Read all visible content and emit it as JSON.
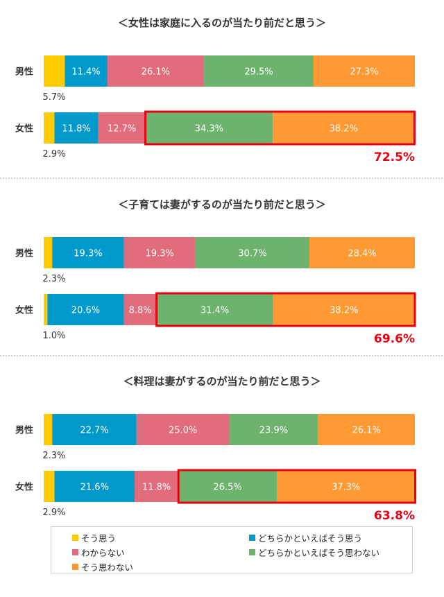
{
  "chart_data": [
    {
      "type": "bar",
      "orientation": "horizontal-stacked-100",
      "title": "＜女性は家庭に入るのが当たり前だと思う＞",
      "categories": [
        "男性",
        "女性"
      ],
      "series": [
        {
          "name": "そう思う",
          "values": [
            5.7,
            2.9
          ]
        },
        {
          "name": "どちらかといえばそう思う",
          "values": [
            11.4,
            11.8
          ]
        },
        {
          "name": "わからない",
          "values": [
            26.1,
            12.7
          ]
        },
        {
          "name": "どちらかといえばそう思わない",
          "values": [
            29.5,
            34.3
          ]
        },
        {
          "name": "そう思わない",
          "values": [
            27.3,
            38.2
          ]
        }
      ],
      "highlight": {
        "row": 1,
        "series": [
          3,
          4
        ],
        "total_label": "72.5%"
      }
    },
    {
      "type": "bar",
      "orientation": "horizontal-stacked-100",
      "title": "＜子育ては妻がするのが当たり前だと思う＞",
      "categories": [
        "男性",
        "女性"
      ],
      "series": [
        {
          "name": "そう思う",
          "values": [
            2.3,
            1.0
          ]
        },
        {
          "name": "どちらかといえばそう思う",
          "values": [
            19.3,
            20.6
          ]
        },
        {
          "name": "わからない",
          "values": [
            19.3,
            8.8
          ]
        },
        {
          "name": "どちらかといえばそう思わない",
          "values": [
            30.7,
            31.4
          ]
        },
        {
          "name": "そう思わない",
          "values": [
            28.4,
            38.2
          ]
        }
      ],
      "highlight": {
        "row": 1,
        "series": [
          3,
          4
        ],
        "total_label": "69.6%"
      }
    },
    {
      "type": "bar",
      "orientation": "horizontal-stacked-100",
      "title": "＜料理は妻がするのが当たり前だと思う＞",
      "categories": [
        "男性",
        "女性"
      ],
      "series": [
        {
          "name": "そう思う",
          "values": [
            2.3,
            2.9
          ]
        },
        {
          "name": "どちらかといえばそう思う",
          "values": [
            22.7,
            21.6
          ]
        },
        {
          "name": "わからない",
          "values": [
            25.0,
            11.8
          ]
        },
        {
          "name": "どちらかといえばそう思わない",
          "values": [
            23.9,
            26.5
          ]
        },
        {
          "name": "そう思わない",
          "values": [
            26.1,
            37.3
          ]
        }
      ],
      "highlight": {
        "row": 1,
        "series": [
          3,
          4
        ],
        "total_label": "63.8%"
      }
    }
  ],
  "colors": [
    "#ffcc00",
    "#0099cc",
    "#e06c7c",
    "#6db36d",
    "#ff9933"
  ],
  "highlight_color": "#e60012",
  "legend": [
    {
      "label": "そう思う",
      "color": "#ffcc00"
    },
    {
      "label": "どちらかといえばそう思う",
      "color": "#0099cc"
    },
    {
      "label": "わからない",
      "color": "#e06c7c"
    },
    {
      "label": "どちらかといえばそう思わない",
      "color": "#6db36d"
    },
    {
      "label": "そう思わない",
      "color": "#ff9933"
    }
  ]
}
